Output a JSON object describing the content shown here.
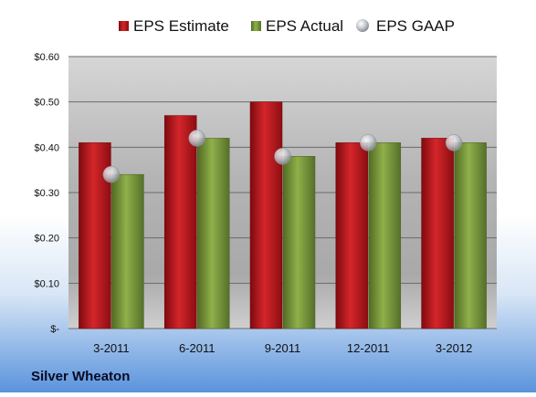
{
  "colors": {
    "estimate": "#c0161c",
    "actual": "#7a9a3a",
    "gaap": "#b8bcc4",
    "grid": "#6b6b6b"
  },
  "chart_data": {
    "type": "bar",
    "categories": [
      "3-2011",
      "6-2011",
      "9-2011",
      "12-2011",
      "3-2012"
    ],
    "series": [
      {
        "name": "EPS Estimate",
        "type": "bar",
        "values": [
          0.41,
          0.47,
          0.5,
          0.41,
          0.42
        ]
      },
      {
        "name": "EPS Actual",
        "type": "bar",
        "values": [
          0.34,
          0.42,
          0.38,
          0.41,
          0.41
        ]
      },
      {
        "name": "EPS GAAP",
        "type": "marker",
        "values": [
          0.34,
          0.42,
          0.38,
          0.41,
          0.41
        ]
      }
    ],
    "y_ticks": [
      0,
      0.1,
      0.2,
      0.3,
      0.4,
      0.5,
      0.6
    ],
    "y_tick_labels": [
      "$-",
      "$0.10",
      "$0.20",
      "$0.30",
      "$0.40",
      "$0.50",
      "$0.60"
    ],
    "ylim": [
      0,
      0.6
    ],
    "grid": true,
    "legend_position": "top",
    "title": "",
    "footer_label": "Silver Wheaton"
  }
}
